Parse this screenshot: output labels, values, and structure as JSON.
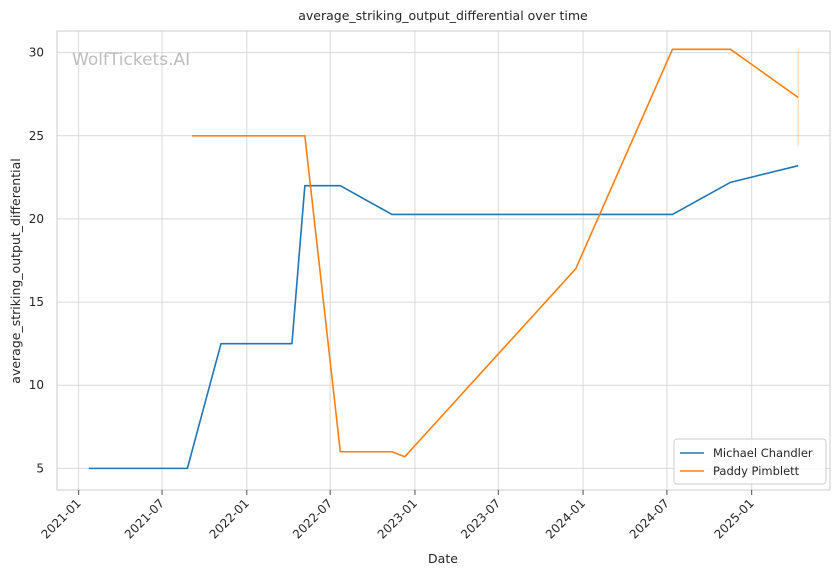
{
  "chart_data": {
    "type": "line",
    "title": "average_striking_output_differential over time",
    "xlabel": "Date",
    "ylabel": "average_striking_output_differential",
    "watermark": "WolfTickets.AI",
    "xlim": [
      "2020-11-15",
      "2025-06-20"
    ],
    "ylim": [
      3.7,
      31.3
    ],
    "x_ticks": [
      "2021-01",
      "2021-07",
      "2022-01",
      "2022-07",
      "2023-01",
      "2023-07",
      "2024-01",
      "2024-07",
      "2025-01"
    ],
    "y_ticks": [
      5,
      10,
      15,
      20,
      25,
      30
    ],
    "grid": true,
    "legend_position": "bottom-right",
    "series": [
      {
        "name": "Michael Chandler",
        "color": "#1f77b4",
        "points": [
          [
            "2021-01-23",
            5.0
          ],
          [
            "2021-08-25",
            5.0
          ],
          [
            "2021-11-06",
            12.5
          ],
          [
            "2022-04-09",
            12.5
          ],
          [
            "2022-05-07",
            22.0
          ],
          [
            "2022-07-23",
            22.0
          ],
          [
            "2022-11-12",
            20.27
          ],
          [
            "2024-07-13",
            20.27
          ],
          [
            "2024-11-16",
            22.2
          ],
          [
            "2025-04-12",
            23.2
          ]
        ]
      },
      {
        "name": "Paddy Pimblett",
        "color": "#ff7f0e",
        "points": [
          [
            "2021-09-04",
            25.0
          ],
          [
            "2022-05-07",
            25.0
          ],
          [
            "2022-07-23",
            6.0
          ],
          [
            "2022-11-12",
            6.0
          ],
          [
            "2022-12-10",
            5.7
          ],
          [
            "2023-12-16",
            17.0
          ],
          [
            "2024-07-13",
            30.2
          ],
          [
            "2024-11-16",
            30.2
          ],
          [
            "2025-04-12",
            27.3
          ]
        ],
        "error_bars": [
          {
            "x": "2025-04-12",
            "low": 24.4,
            "high": 30.2
          }
        ]
      }
    ]
  }
}
